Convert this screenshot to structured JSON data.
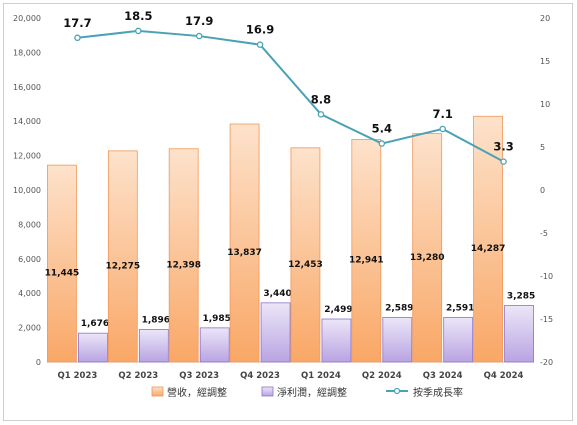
{
  "chart_data": {
    "type": "bar",
    "categories": [
      "Q1 2023",
      "Q2 2023",
      "Q3 2023",
      "Q4 2023",
      "Q1 2024",
      "Q2 2024",
      "Q3 2024",
      "Q4 2024"
    ],
    "series": [
      {
        "name": "營收，經調整",
        "type": "bar",
        "axis": "left",
        "color": "#f9b27a",
        "values": [
          11445,
          12275,
          12398,
          13837,
          12453,
          12941,
          13280,
          14287
        ],
        "labels": [
          "11,445",
          "12,275",
          "12,398",
          "13,837",
          "12,453",
          "12,941",
          "13,280",
          "14,287"
        ]
      },
      {
        "name": "淨利潤，經調整",
        "type": "bar",
        "axis": "left",
        "color": "#b9a6e0",
        "values": [
          1676,
          1896,
          1985,
          3440,
          2499,
          2589,
          2591,
          3285
        ],
        "labels": [
          "1,676",
          "1,896",
          "1,985",
          "3,440",
          "2,499",
          "2,589",
          "2,591",
          "3,285"
        ]
      },
      {
        "name": "按季成長率",
        "type": "line",
        "axis": "right",
        "color": "#4aa3b5",
        "values": [
          17.7,
          18.5,
          17.9,
          16.9,
          8.8,
          5.4,
          7.1,
          3.3
        ],
        "labels": [
          "17.7",
          "18.5",
          "17.9",
          "16.9",
          "8.8",
          "5.4",
          "7.1",
          "3.3"
        ]
      }
    ],
    "y_left": {
      "lim": [
        0,
        20000
      ],
      "ticks": [
        "0",
        "2,000",
        "4,000",
        "6,000",
        "8,000",
        "10,000",
        "12,000",
        "14,000",
        "16,000",
        "18,000",
        "20,000"
      ]
    },
    "y_right": {
      "lim": [
        -20,
        20
      ],
      "ticks": [
        "-20",
        "-15",
        "-10",
        "-5",
        "0",
        "5",
        "10",
        "15",
        "20"
      ]
    },
    "title": "",
    "xlabel": "",
    "ylabel": "",
    "grid": false,
    "legend": "bottom"
  }
}
